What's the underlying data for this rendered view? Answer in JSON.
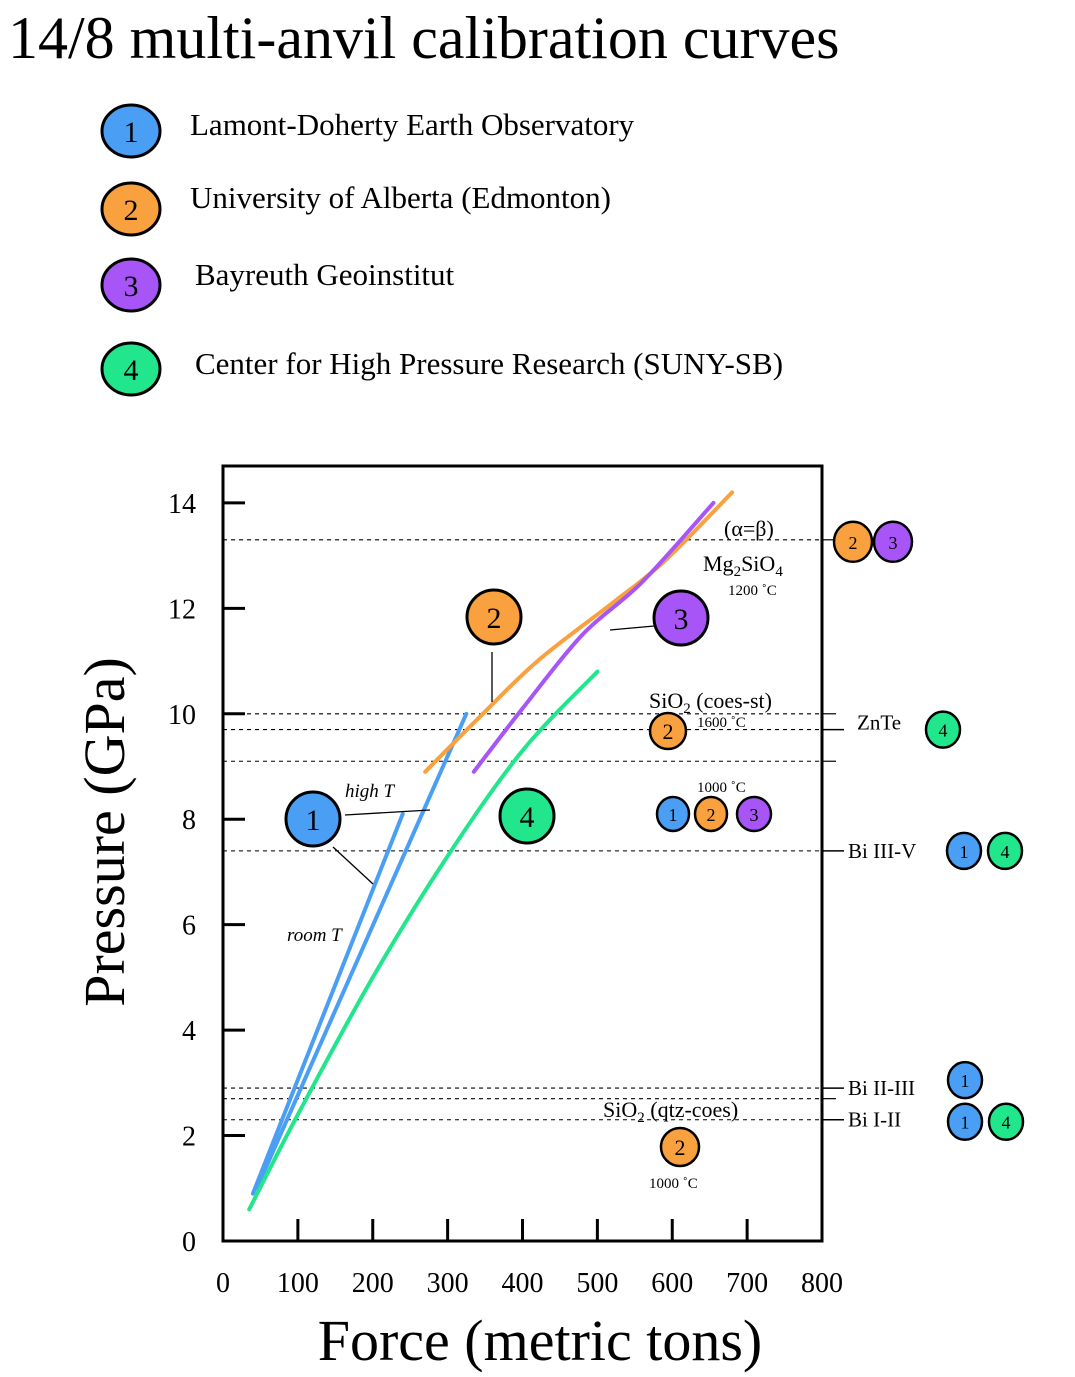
{
  "chart_data": {
    "type": "line",
    "title": "14/8 multi-anvil calibration curves",
    "xlabel": "Force (metric tons)",
    "ylabel": "Pressure (GPa)",
    "xlim": [
      0,
      800
    ],
    "ylim": [
      0,
      14.7
    ],
    "xticks": [
      0,
      100,
      200,
      300,
      400,
      500,
      600,
      700,
      800
    ],
    "yticks": [
      0,
      2,
      4,
      6,
      8,
      10,
      12,
      14
    ],
    "xtick_labels": [
      "0",
      "100",
      "200",
      "300",
      "400",
      "500",
      "600",
      "700",
      "800"
    ],
    "ytick_labels": [
      "0",
      "2",
      "4",
      "6",
      "8",
      "10",
      "12",
      "14"
    ],
    "grid": false,
    "colors": {
      "1": "#4a9ff5",
      "2": "#f9a03f",
      "3": "#a855f7",
      "4": "#22e68c"
    },
    "legend": [
      {
        "num": "1",
        "label": "Lamont-Doherty Earth Observatory"
      },
      {
        "num": "2",
        "label": "University of Alberta (Edmonton)"
      },
      {
        "num": "3",
        "label": "Bayreuth Geoinstitut"
      },
      {
        "num": "4",
        "label": "Center for High Pressure Research (SUNY-SB)"
      }
    ],
    "series": [
      {
        "lab": "1",
        "points": [
          [
            40,
            0.9
          ],
          [
            240,
            8.1
          ]
        ]
      },
      {
        "lab": "1",
        "points": [
          [
            45,
            1.0
          ],
          [
            325,
            10.0
          ]
        ]
      },
      {
        "lab": "2",
        "points": [
          [
            270,
            8.9
          ],
          [
            340,
            9.9
          ],
          [
            420,
            11.0
          ],
          [
            520,
            12.1
          ],
          [
            590,
            12.9
          ],
          [
            680,
            14.2
          ]
        ]
      },
      {
        "lab": "3",
        "points": [
          [
            335,
            8.9
          ],
          [
            400,
            10.1
          ],
          [
            480,
            11.5
          ],
          [
            560,
            12.5
          ],
          [
            655,
            14.0
          ]
        ]
      },
      {
        "lab": "4",
        "points": [
          [
            35,
            0.6
          ],
          [
            100,
            2.4
          ],
          [
            200,
            5.0
          ],
          [
            300,
            7.3
          ],
          [
            400,
            9.3
          ],
          [
            500,
            10.8
          ]
        ]
      }
    ],
    "fixed_points": [
      {
        "y": 13.3,
        "right_label": "",
        "right_labs": [
          "2",
          "3"
        ]
      },
      {
        "y": 10.0,
        "right_label": "",
        "right_labs": []
      },
      {
        "y": 9.7,
        "right_label": "ZnTe",
        "right_labs": [
          "4"
        ]
      },
      {
        "y": 9.1,
        "right_label": "",
        "right_labs": []
      },
      {
        "y": 7.4,
        "right_label": "Bi III-V",
        "right_labs": [
          "1",
          "4"
        ]
      },
      {
        "y": 2.9,
        "right_label": "Bi II-III",
        "right_labs": [
          "1"
        ]
      },
      {
        "y": 2.7,
        "right_label": "",
        "right_labs": []
      },
      {
        "y": 2.3,
        "right_label": "Bi I-II",
        "right_labs": [
          "1",
          "4"
        ]
      }
    ],
    "annotations": {
      "alpha_beta": "(α=β)",
      "mg2sio4_pre": "Mg",
      "mg2sio4_sub1": "2",
      "mg2sio4_mid": "SiO",
      "mg2sio4_sub2": "4",
      "mg2sio4_temp": "1200 ˚C",
      "coes_st_pre": "SiO",
      "coes_st_sub": "2",
      "coes_st_post": " (coes-st)",
      "coes_st_temp": "1600 ˚C",
      "coes_st_1000": "1000 ˚C",
      "qtz_coes_pre": "SiO",
      "qtz_coes_sub": "2",
      "qtz_coes_post": " (qtz-coes)",
      "qtz_coes_temp": "1000 ˚C",
      "high_t": "high T",
      "room_t": "room T"
    }
  }
}
